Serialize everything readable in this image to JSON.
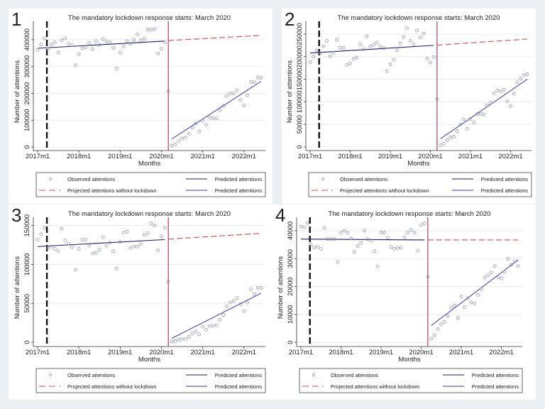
{
  "chart_data": [
    {
      "type": "scatter",
      "panel_label": "1",
      "title": "The mandatory lockdown response starts: March 2020",
      "xlabel": "Months",
      "ylabel": "Number of attentions",
      "x_start": "2017m1",
      "x_end": "2022m6",
      "xticks": [
        "2017m1",
        "2018m1",
        "2019m1",
        "2020m1",
        "2021m1",
        "2022m1"
      ],
      "yticks": [
        0,
        100000,
        200000,
        300000,
        400000
      ],
      "ylim": [
        -13000,
        458000
      ],
      "grid": true,
      "reference_lines": {
        "pre_period_start": "2017m4",
        "lockdown": "2020m3"
      },
      "observed": [
        362000,
        382000,
        405000,
        365000,
        382000,
        390000,
        352000,
        398000,
        405000,
        385000,
        380000,
        305000,
        345000,
        368000,
        372000,
        388000,
        365000,
        395000,
        380000,
        402000,
        393000,
        390000,
        370000,
        292000,
        352000,
        375000,
        395000,
        385000,
        400000,
        420000,
        398000,
        403000,
        438000,
        437000,
        440000,
        348000,
        366000,
        390000,
        208000,
        5000,
        10000,
        22000,
        32000,
        35000,
        50000,
        72000,
        88000,
        58000,
        98000,
        83000,
        110000,
        108000,
        107000,
        138000,
        153000,
        190000,
        200000,
        200000,
        212000,
        175000,
        155000,
        193000,
        242000,
        242000,
        258000,
        258000
      ],
      "predicted_pre": {
        "from": [
          "2017m1",
          368000
        ],
        "to": [
          "2020m2",
          395000
        ]
      },
      "projected": {
        "from": [
          "2020m3",
          397000
        ],
        "to": [
          "2022m6",
          416000
        ]
      },
      "predicted_post": {
        "from": [
          "2020m4",
          30000
        ],
        "to": [
          "2022m6",
          245000
        ]
      }
    },
    {
      "type": "scatter",
      "panel_label": "2",
      "title": "The mandatory lockdown response starts: March 2020",
      "xlabel": "Months",
      "ylabel": "Number of attentions",
      "x_start": "2017m1",
      "x_end": "2022m6",
      "xticks": [
        "2017m1",
        "2018m1",
        "2019m1",
        "2020m1",
        "2021m1",
        "2022m1"
      ],
      "yticks": [
        0,
        50000,
        100000,
        150000,
        200000,
        250000
      ],
      "ylim": [
        -8000,
        272000
      ],
      "grid": true,
      "reference_lines": {
        "pre_period_start": "2017m4",
        "lockdown": "2020m3"
      },
      "observed": [
        188000,
        200000,
        214000,
        208000,
        223000,
        235000,
        201000,
        209000,
        237000,
        220000,
        219000,
        182000,
        185000,
        195000,
        198000,
        227000,
        216000,
        245000,
        223000,
        226000,
        231000,
        223000,
        219000,
        168000,
        183000,
        193000,
        214000,
        229000,
        243000,
        263000,
        235000,
        227000,
        258000,
        242000,
        251000,
        196000,
        187000,
        199000,
        106000,
        4000,
        7000,
        15000,
        21000,
        23000,
        35000,
        50000,
        61000,
        40000,
        62000,
        54000,
        73000,
        73000,
        72000,
        92000,
        98000,
        119000,
        125000,
        123000,
        127000,
        101000,
        90000,
        118000,
        143000,
        151000,
        159000,
        161000
      ],
      "predicted_pre": {
        "from": [
          "2017m1",
          208000
        ],
        "to": [
          "2020m2",
          225000
        ]
      },
      "projected": {
        "from": [
          "2020m3",
          225500
        ],
        "to": [
          "2022m6",
          239000
        ]
      },
      "predicted_post": {
        "from": [
          "2020m4",
          18000
        ],
        "to": [
          "2022m6",
          150000
        ]
      }
    },
    {
      "type": "scatter",
      "panel_label": "3",
      "title": "The mandatory lockdown response starts: March 2020",
      "xlabel": "Months",
      "ylabel": "Number of attentions",
      "x_start": "2017m1",
      "x_end": "2022m6",
      "xticks": [
        "2017m1",
        "2018m1",
        "2019m1",
        "2020m1",
        "2021m1",
        "2022m1"
      ],
      "yticks": [
        0,
        50000,
        100000,
        150000
      ],
      "ylim": [
        -5500,
        157000
      ],
      "grid": true,
      "reference_lines": {
        "pre_period_start": "2017m4",
        "lockdown": "2020m3"
      },
      "observed": [
        132000,
        139000,
        147000,
        121000,
        123000,
        120000,
        117000,
        146000,
        131000,
        127000,
        122000,
        93000,
        120000,
        132000,
        132000,
        124000,
        114000,
        115000,
        119000,
        135000,
        124000,
        128000,
        117000,
        95000,
        129000,
        141000,
        142000,
        121000,
        123000,
        123000,
        126000,
        138000,
        140000,
        153000,
        150000,
        118000,
        136000,
        147000,
        78000,
        1000,
        1500,
        3000,
        4000,
        4000,
        7000,
        11000,
        14000,
        10000,
        20000,
        16000,
        21000,
        21000,
        22000,
        29000,
        35000,
        46000,
        51000,
        53000,
        57000,
        49000,
        40000,
        51000,
        68000,
        62000,
        70000,
        70000
      ],
      "predicted_pre": {
        "from": [
          "2017m1",
          123000
        ],
        "to": [
          "2020m2",
          132000
        ]
      },
      "projected": {
        "from": [
          "2020m3",
          132500
        ],
        "to": [
          "2022m6",
          140000
        ]
      },
      "predicted_post": {
        "from": [
          "2020m4",
          5000
        ],
        "to": [
          "2022m6",
          63000
        ]
      }
    },
    {
      "type": "scatter",
      "panel_label": "4",
      "title": "The mandatory lockdown response starts: March 2020",
      "xlabel": "Months",
      "ylabel": "Number of attentions",
      "x_start": "2017m1",
      "x_end": "2022m6",
      "xticks": [
        "2017m1",
        "2018m1",
        "2019m1",
        "2020m1",
        "2021m1",
        "2022m1"
      ],
      "yticks": [
        0,
        10000,
        20000,
        30000,
        40000
      ],
      "ylim": [
        -1500,
        43800
      ],
      "grid": true,
      "reference_lines": {
        "pre_period_start": "2017m4",
        "lockdown": "2020m3"
      },
      "observed": [
        41500,
        41200,
        42700,
        35000,
        34000,
        34300,
        33500,
        41000,
        37000,
        37000,
        37000,
        28800,
        39200,
        40000,
        39200,
        37200,
        32500,
        34500,
        35600,
        40000,
        37000,
        36500,
        32700,
        27200,
        39300,
        39300,
        37500,
        34200,
        33500,
        33800,
        33900,
        37600,
        39300,
        40300,
        39200,
        32800,
        42000,
        42700,
        23500,
        1300,
        2500,
        4800,
        6500,
        7300,
        9400,
        12500,
        13200,
        8700,
        16400,
        12600,
        15800,
        14300,
        13900,
        17000,
        19000,
        23200,
        24000,
        25000,
        27300,
        23300,
        22900,
        25300,
        29900,
        27800,
        29000,
        27300
      ],
      "predicted_pre": {
        "from": [
          "2017m1",
          37000
        ],
        "to": [
          "2020m2",
          36700
        ]
      },
      "projected": {
        "from": [
          "2020m3",
          36700
        ],
        "to": [
          "2022m6",
          36700
        ]
      },
      "predicted_post": {
        "from": [
          "2020m4",
          6000
        ],
        "to": [
          "2022m6",
          29500
        ]
      }
    }
  ],
  "legend": {
    "observed": "Observed attentions",
    "predicted_pre": "Predicted attentions",
    "projected": "Projected attentions without lockdown",
    "predicted_post": "Predicted attentions"
  },
  "colors": {
    "observed": "#8c96aa",
    "predicted_pre": "#1c1c6b",
    "predicted_post": "#3a3aa8",
    "projected": "#c9504f",
    "lockdown_line": "#8e1f3f",
    "pre_period_line": "#111111",
    "grid": "#e8ecef",
    "background": "#e9eff2"
  }
}
